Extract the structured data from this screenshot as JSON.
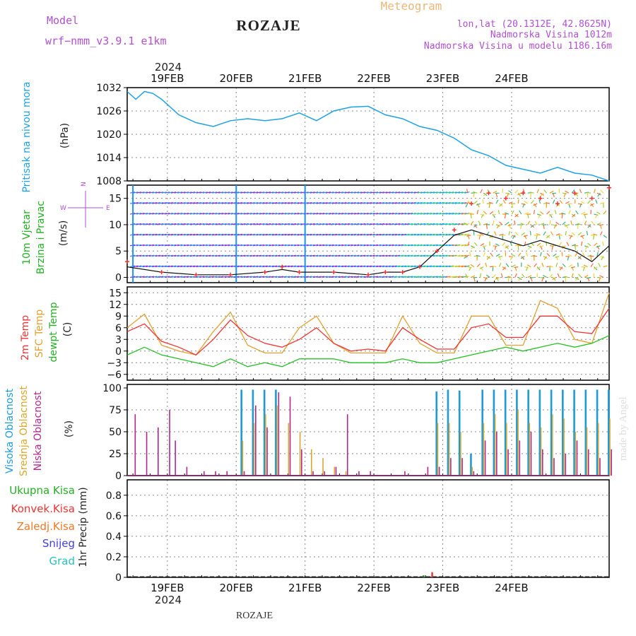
{
  "header": {
    "model_label": "Model",
    "model_name": "wrf−nmm_v3.9.1  e1km",
    "station": "ROZAJE",
    "meteogram": "Meteogram",
    "lonlat": "lon,lat (20.1312E, 42.8625N)",
    "elev": "Nadmorska Visina 1012m",
    "elev_model": "Nadmorska Visina u modelu 1186.16m",
    "year_top": "2024",
    "year_bottom": "2024",
    "footer_station": "ROZAJE",
    "credit": "made by Angel"
  },
  "dates": [
    "19FEB",
    "20FEB",
    "21FEB",
    "22FEB",
    "23FEB",
    "24FEB"
  ],
  "colors": {
    "pressure": "#1da1e6",
    "temp2m": "#ee3333",
    "sfc": "#e0a030",
    "dewpt": "#22c022",
    "high": "#1e9ad6",
    "mid": "#d8a830",
    "low": "#b0288c",
    "wind_speed": "#111111",
    "wind_gust": "#ee3333"
  },
  "panels": {
    "pressure": {
      "ylabel_name": "Pritisak na nivou mora",
      "unit": "(hPa)",
      "ticks": [
        "1032",
        "1026",
        "1020",
        "1014",
        "1008"
      ]
    },
    "wind": {
      "ylabel_a": "10m Vjetar",
      "ylabel_b": "Brzina i Pravac",
      "unit": "(m/s)",
      "ticks": [
        "15",
        "10",
        "5",
        "0"
      ],
      "compass": "N",
      "compass_w": "W",
      "compass_e": "E"
    },
    "temp": {
      "label_2m": "2m Temp",
      "label_sfc": "SFC Temp",
      "label_dew": "dewpt Temp",
      "unit": "(C)",
      "ticks": [
        "15",
        "12",
        "9",
        "6",
        "3",
        "0",
        "−3",
        "−6"
      ]
    },
    "cloud": {
      "label_high": "Visoka Oblacnost",
      "label_mid": "Srednja Oblacnost",
      "label_low": "Niska Oblacnost",
      "unit": "(%)",
      "ticks": [
        "100",
        "75",
        "50",
        "25",
        "0"
      ]
    },
    "precip": {
      "unit": "1hr Precip (mm)",
      "ticks": [
        "0.8",
        "0.6",
        "0.4",
        "0.2",
        "0"
      ],
      "legend": [
        "Ukupna Kisa",
        "Konvek.Kisa",
        "Zaledj.Kisa",
        "Snijeg",
        "Grad"
      ],
      "legend_colors": [
        "#22b022",
        "#ee3333",
        "#f07828",
        "#4040e0",
        "#28c0c0"
      ]
    }
  },
  "chart_data": [
    {
      "type": "line",
      "title": "Pritisak na nivou mora",
      "ylabel": "(hPa)",
      "ylim": [
        1008,
        1032
      ],
      "x_hours": [
        0,
        3,
        6,
        9,
        12,
        18,
        24,
        30,
        36,
        42,
        48,
        54,
        60,
        66,
        72,
        78,
        84,
        90,
        96,
        102,
        108,
        114,
        120,
        126,
        132,
        138,
        144,
        150,
        156,
        162,
        168
      ],
      "series": [
        {
          "values": [
            1031,
            1029,
            1031,
            1030.5,
            1029,
            1025,
            1023,
            1022,
            1023.5,
            1024,
            1023.5,
            1024,
            1025.5,
            1023.5,
            1026,
            1027,
            1027.2,
            1025,
            1024,
            1022,
            1021,
            1019,
            1016,
            1014.5,
            1012,
            1011,
            1010,
            1011.5,
            1010,
            1009.5,
            1008
          ]
        }
      ],
      "grid": true
    },
    {
      "type": "line",
      "title": "10m Vjetar Brzina i Pravac",
      "ylabel": "(m/s)",
      "ylim": [
        -1,
        18
      ],
      "x_hours": [
        0,
        12,
        24,
        36,
        48,
        54,
        60,
        72,
        84,
        90,
        96,
        102,
        108,
        114,
        120,
        126,
        132,
        138,
        144,
        150,
        156,
        162,
        168
      ],
      "series": [
        {
          "values": [
            3,
            1,
            0.5,
            0.5,
            1,
            2,
            1,
            1,
            0.5,
            1,
            1,
            2,
            5,
            9,
            14,
            16,
            15,
            16,
            15,
            14,
            16,
            15,
            17
          ]
        },
        {
          "values": [
            2,
            1,
            0.5,
            0.5,
            1,
            1.5,
            1,
            1,
            0.5,
            1,
            1,
            2,
            5,
            8,
            9,
            8,
            7,
            6,
            7,
            6,
            5,
            3,
            6
          ]
        }
      ],
      "grid": true
    },
    {
      "type": "line",
      "title": "2m Temp / SFC Temp / dewpt Temp",
      "ylabel": "(C)",
      "ylim": [
        -7.5,
        16
      ],
      "x_hours": [
        0,
        6,
        12,
        18,
        24,
        30,
        36,
        42,
        48,
        54,
        60,
        66,
        72,
        78,
        84,
        90,
        96,
        102,
        108,
        114,
        120,
        126,
        132,
        138,
        144,
        150,
        156,
        162,
        168
      ],
      "series": [
        {
          "values": [
            5,
            7,
            2.5,
            1,
            -1,
            3,
            8,
            4,
            2,
            1,
            3,
            6,
            2,
            0,
            0.5,
            0,
            6,
            3,
            0.5,
            0.5,
            6,
            7,
            3.5,
            3.5,
            9,
            9,
            5,
            4.5,
            11
          ]
        },
        {
          "values": [
            6,
            9.5,
            1.5,
            0,
            -1,
            5,
            10,
            1.5,
            -0.5,
            -0.5,
            6,
            9,
            2,
            -0.5,
            -0.5,
            -0.5,
            9,
            2,
            -0.5,
            -0.5,
            9,
            9,
            1.5,
            1.5,
            13,
            11,
            3,
            2,
            15
          ]
        },
        {
          "values": [
            -1,
            1,
            -1,
            -2,
            -3,
            -4,
            -2,
            -4,
            -3,
            -4,
            -2,
            -2,
            -2,
            -3,
            -3,
            -3,
            -2,
            -3,
            -3,
            -2,
            -1,
            0,
            1,
            0,
            1,
            2,
            1,
            2,
            4
          ]
        }
      ],
      "grid": true
    },
    {
      "type": "bar",
      "title": "Visoka / Srednja / Niska Oblacnost",
      "ylabel": "(%)",
      "ylim": [
        0,
        100
      ],
      "x_hours": [
        2,
        6,
        10,
        14,
        16,
        20,
        26,
        30,
        34,
        40,
        44,
        48,
        52,
        56,
        60,
        64,
        68,
        72,
        76,
        80,
        84,
        88,
        92,
        96,
        100,
        104,
        108,
        112,
        116,
        120,
        124,
        128,
        132,
        136,
        140,
        144,
        148,
        152,
        156,
        160,
        164,
        168
      ],
      "series": [
        {
          "values": [
            0,
            0,
            0,
            0,
            0,
            0,
            0,
            0,
            0,
            98,
            98,
            98,
            98,
            0,
            0,
            0,
            0,
            0,
            0,
            0,
            0,
            0,
            0,
            0,
            0,
            0,
            96,
            98,
            97,
            25,
            98,
            98,
            98,
            98,
            98,
            98,
            98,
            98,
            98,
            98,
            98,
            98
          ]
        },
        {
          "values": [
            0,
            0,
            0,
            0,
            0,
            0,
            0,
            0,
            0,
            40,
            60,
            70,
            80,
            60,
            50,
            30,
            20,
            10,
            5,
            0,
            0,
            0,
            0,
            0,
            0,
            0,
            60,
            60,
            50,
            10,
            60,
            70,
            60,
            75,
            60,
            55,
            70,
            65,
            50,
            55,
            60,
            65
          ]
        },
        {
          "values": [
            70,
            50,
            55,
            75,
            40,
            10,
            5,
            5,
            5,
            5,
            80,
            55,
            95,
            90,
            30,
            5,
            5,
            10,
            70,
            5,
            5,
            0,
            0,
            5,
            0,
            10,
            10,
            20,
            20,
            5,
            40,
            50,
            30,
            40,
            50,
            30,
            20,
            25,
            40,
            30,
            20,
            30
          ]
        }
      ],
      "grid": true
    },
    {
      "type": "bar",
      "title": "1hr Precip",
      "ylabel": "1hr Precip (mm)",
      "ylim": [
        0,
        0.95
      ],
      "x_hours": [
        103,
        106
      ],
      "series": [
        {
          "values": [
            0.02,
            0.05
          ]
        }
      ],
      "grid": true
    }
  ]
}
